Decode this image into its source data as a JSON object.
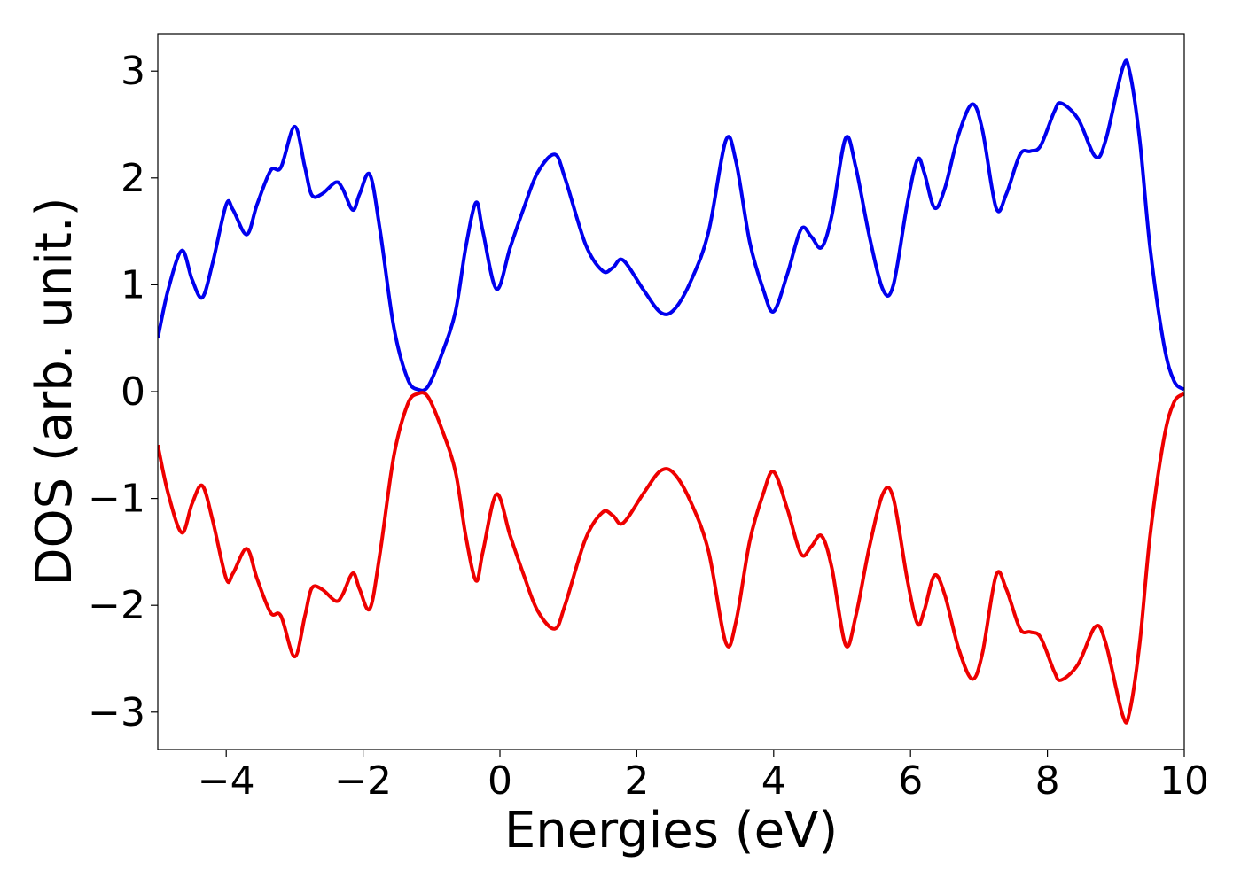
{
  "chart_data": {
    "type": "line",
    "title": "",
    "xlabel": "Energies (eV)",
    "ylabel": "DOS (arb. unit.)",
    "xlim": [
      -5,
      10
    ],
    "ylim": [
      -3.35,
      3.35
    ],
    "xticks": [
      -4,
      -2,
      0,
      2,
      4,
      6,
      8,
      10
    ],
    "yticks": [
      -3,
      -2,
      -1,
      0,
      1,
      2,
      3
    ],
    "xtick_labels": [
      "−4",
      "−2",
      "0",
      "2",
      "4",
      "6",
      "8",
      "10"
    ],
    "ytick_labels": [
      "−3",
      "−2",
      "−1",
      "0",
      "1",
      "2",
      "3"
    ],
    "grid": false,
    "legend": "none",
    "series": [
      {
        "color": "#0000ee",
        "points": [
          [
            -5.0,
            0.5
          ],
          [
            -4.85,
            0.95
          ],
          [
            -4.65,
            1.32
          ],
          [
            -4.5,
            1.05
          ],
          [
            -4.35,
            0.88
          ],
          [
            -4.2,
            1.2
          ],
          [
            -4.0,
            1.75
          ],
          [
            -3.9,
            1.7
          ],
          [
            -3.7,
            1.47
          ],
          [
            -3.55,
            1.75
          ],
          [
            -3.35,
            2.07
          ],
          [
            -3.2,
            2.1
          ],
          [
            -3.0,
            2.48
          ],
          [
            -2.85,
            2.1
          ],
          [
            -2.75,
            1.84
          ],
          [
            -2.6,
            1.85
          ],
          [
            -2.4,
            1.96
          ],
          [
            -2.3,
            1.9
          ],
          [
            -2.15,
            1.7
          ],
          [
            -2.05,
            1.85
          ],
          [
            -1.9,
            2.03
          ],
          [
            -1.75,
            1.5
          ],
          [
            -1.55,
            0.6
          ],
          [
            -1.35,
            0.12
          ],
          [
            -1.2,
            0.02
          ],
          [
            -1.05,
            0.05
          ],
          [
            -0.85,
            0.35
          ],
          [
            -0.65,
            0.75
          ],
          [
            -0.5,
            1.35
          ],
          [
            -0.35,
            1.77
          ],
          [
            -0.25,
            1.5
          ],
          [
            -0.05,
            0.96
          ],
          [
            0.15,
            1.35
          ],
          [
            0.35,
            1.72
          ],
          [
            0.55,
            2.05
          ],
          [
            0.8,
            2.22
          ],
          [
            0.95,
            2.0
          ],
          [
            1.25,
            1.38
          ],
          [
            1.5,
            1.13
          ],
          [
            1.65,
            1.16
          ],
          [
            1.8,
            1.23
          ],
          [
            2.1,
            0.95
          ],
          [
            2.35,
            0.74
          ],
          [
            2.55,
            0.77
          ],
          [
            2.8,
            1.05
          ],
          [
            3.05,
            1.5
          ],
          [
            3.3,
            2.35
          ],
          [
            3.45,
            2.15
          ],
          [
            3.65,
            1.4
          ],
          [
            3.85,
            0.95
          ],
          [
            4.0,
            0.75
          ],
          [
            4.2,
            1.1
          ],
          [
            4.4,
            1.52
          ],
          [
            4.55,
            1.45
          ],
          [
            4.7,
            1.35
          ],
          [
            4.85,
            1.65
          ],
          [
            5.05,
            2.37
          ],
          [
            5.2,
            2.1
          ],
          [
            5.4,
            1.45
          ],
          [
            5.6,
            0.95
          ],
          [
            5.75,
            1.0
          ],
          [
            5.95,
            1.75
          ],
          [
            6.1,
            2.17
          ],
          [
            6.2,
            2.05
          ],
          [
            6.35,
            1.72
          ],
          [
            6.5,
            1.9
          ],
          [
            6.7,
            2.4
          ],
          [
            6.9,
            2.69
          ],
          [
            7.05,
            2.45
          ],
          [
            7.25,
            1.72
          ],
          [
            7.4,
            1.85
          ],
          [
            7.6,
            2.22
          ],
          [
            7.75,
            2.25
          ],
          [
            7.9,
            2.3
          ],
          [
            8.1,
            2.62
          ],
          [
            8.2,
            2.7
          ],
          [
            8.45,
            2.55
          ],
          [
            8.7,
            2.2
          ],
          [
            8.85,
            2.35
          ],
          [
            9.1,
            3.03
          ],
          [
            9.2,
            3.0
          ],
          [
            9.35,
            2.35
          ],
          [
            9.5,
            1.35
          ],
          [
            9.7,
            0.45
          ],
          [
            9.85,
            0.1
          ],
          [
            10.0,
            0.02
          ]
        ]
      },
      {
        "color": "#ee0000",
        "points": [
          [
            -5.0,
            -0.5
          ],
          [
            -4.85,
            -0.95
          ],
          [
            -4.65,
            -1.32
          ],
          [
            -4.5,
            -1.05
          ],
          [
            -4.35,
            -0.88
          ],
          [
            -4.2,
            -1.2
          ],
          [
            -4.0,
            -1.75
          ],
          [
            -3.9,
            -1.7
          ],
          [
            -3.7,
            -1.47
          ],
          [
            -3.55,
            -1.75
          ],
          [
            -3.35,
            -2.07
          ],
          [
            -3.2,
            -2.1
          ],
          [
            -3.0,
            -2.48
          ],
          [
            -2.85,
            -2.1
          ],
          [
            -2.75,
            -1.84
          ],
          [
            -2.6,
            -1.85
          ],
          [
            -2.4,
            -1.96
          ],
          [
            -2.3,
            -1.9
          ],
          [
            -2.15,
            -1.7
          ],
          [
            -2.05,
            -1.85
          ],
          [
            -1.9,
            -2.03
          ],
          [
            -1.75,
            -1.5
          ],
          [
            -1.55,
            -0.6
          ],
          [
            -1.35,
            -0.12
          ],
          [
            -1.2,
            -0.02
          ],
          [
            -1.05,
            -0.05
          ],
          [
            -0.85,
            -0.35
          ],
          [
            -0.65,
            -0.75
          ],
          [
            -0.5,
            -1.35
          ],
          [
            -0.35,
            -1.77
          ],
          [
            -0.25,
            -1.5
          ],
          [
            -0.05,
            -0.96
          ],
          [
            0.15,
            -1.35
          ],
          [
            0.35,
            -1.72
          ],
          [
            0.55,
            -2.05
          ],
          [
            0.8,
            -2.22
          ],
          [
            0.95,
            -2.0
          ],
          [
            1.25,
            -1.38
          ],
          [
            1.5,
            -1.13
          ],
          [
            1.65,
            -1.16
          ],
          [
            1.8,
            -1.23
          ],
          [
            2.1,
            -0.95
          ],
          [
            2.35,
            -0.74
          ],
          [
            2.55,
            -0.77
          ],
          [
            2.8,
            -1.05
          ],
          [
            3.05,
            -1.5
          ],
          [
            3.3,
            -2.35
          ],
          [
            3.45,
            -2.15
          ],
          [
            3.65,
            -1.4
          ],
          [
            3.85,
            -0.95
          ],
          [
            4.0,
            -0.75
          ],
          [
            4.2,
            -1.1
          ],
          [
            4.4,
            -1.52
          ],
          [
            4.55,
            -1.45
          ],
          [
            4.7,
            -1.35
          ],
          [
            4.85,
            -1.65
          ],
          [
            5.05,
            -2.37
          ],
          [
            5.2,
            -2.1
          ],
          [
            5.4,
            -1.45
          ],
          [
            5.6,
            -0.95
          ],
          [
            5.75,
            -1.0
          ],
          [
            5.95,
            -1.75
          ],
          [
            6.1,
            -2.17
          ],
          [
            6.2,
            -2.05
          ],
          [
            6.35,
            -1.72
          ],
          [
            6.5,
            -1.9
          ],
          [
            6.7,
            -2.4
          ],
          [
            6.9,
            -2.69
          ],
          [
            7.05,
            -2.45
          ],
          [
            7.25,
            -1.72
          ],
          [
            7.4,
            -1.85
          ],
          [
            7.6,
            -2.22
          ],
          [
            7.75,
            -2.25
          ],
          [
            7.9,
            -2.3
          ],
          [
            8.1,
            -2.62
          ],
          [
            8.2,
            -2.7
          ],
          [
            8.45,
            -2.55
          ],
          [
            8.7,
            -2.2
          ],
          [
            8.85,
            -2.35
          ],
          [
            9.1,
            -3.03
          ],
          [
            9.2,
            -3.0
          ],
          [
            9.35,
            -2.35
          ],
          [
            9.5,
            -1.35
          ],
          [
            9.7,
            -0.45
          ],
          [
            9.85,
            -0.1
          ],
          [
            10.0,
            -0.02
          ]
        ]
      }
    ]
  }
}
